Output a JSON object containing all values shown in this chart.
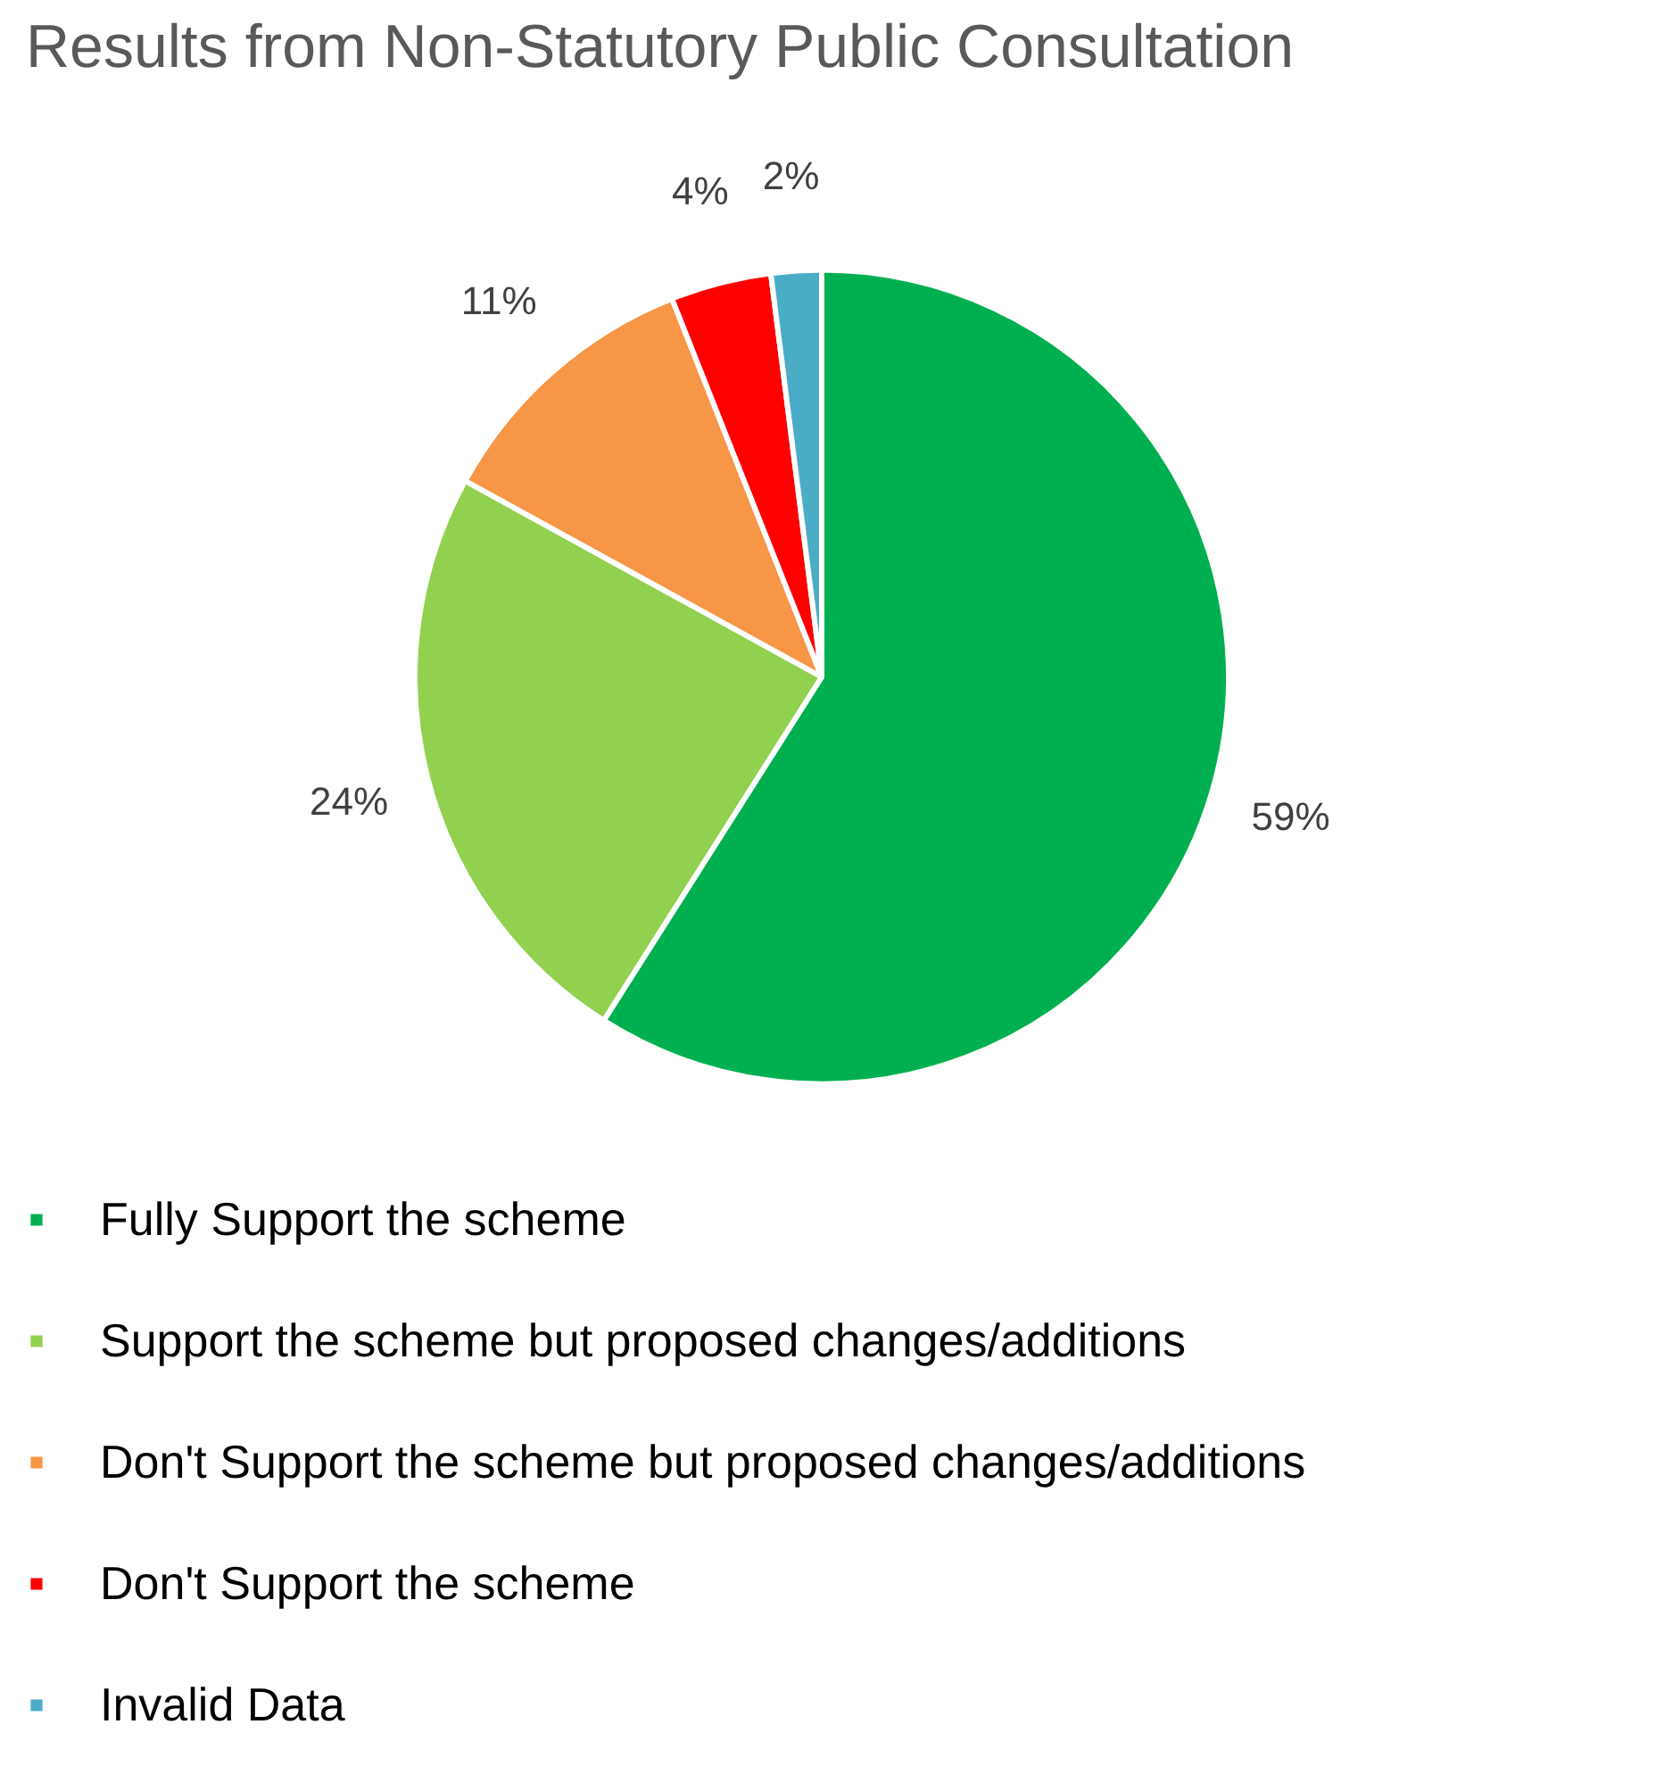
{
  "chart_data": {
    "type": "pie",
    "title": "Results from Non-Statutory Public Consultation",
    "categories": [
      "Fully Support the scheme",
      "Support the scheme but proposed changes/additions",
      "Don't Support the scheme but proposed changes/additions",
      "Don't Support the scheme",
      "Invalid Data"
    ],
    "values": [
      59,
      24,
      11,
      4,
      2
    ],
    "colors": [
      "#00b050",
      "#92d050",
      "#f79646",
      "#ff0000",
      "#4bacc6"
    ],
    "value_labels": [
      "59%",
      "24%",
      "11%",
      "4%",
      "2%"
    ],
    "legend": "bottom"
  }
}
